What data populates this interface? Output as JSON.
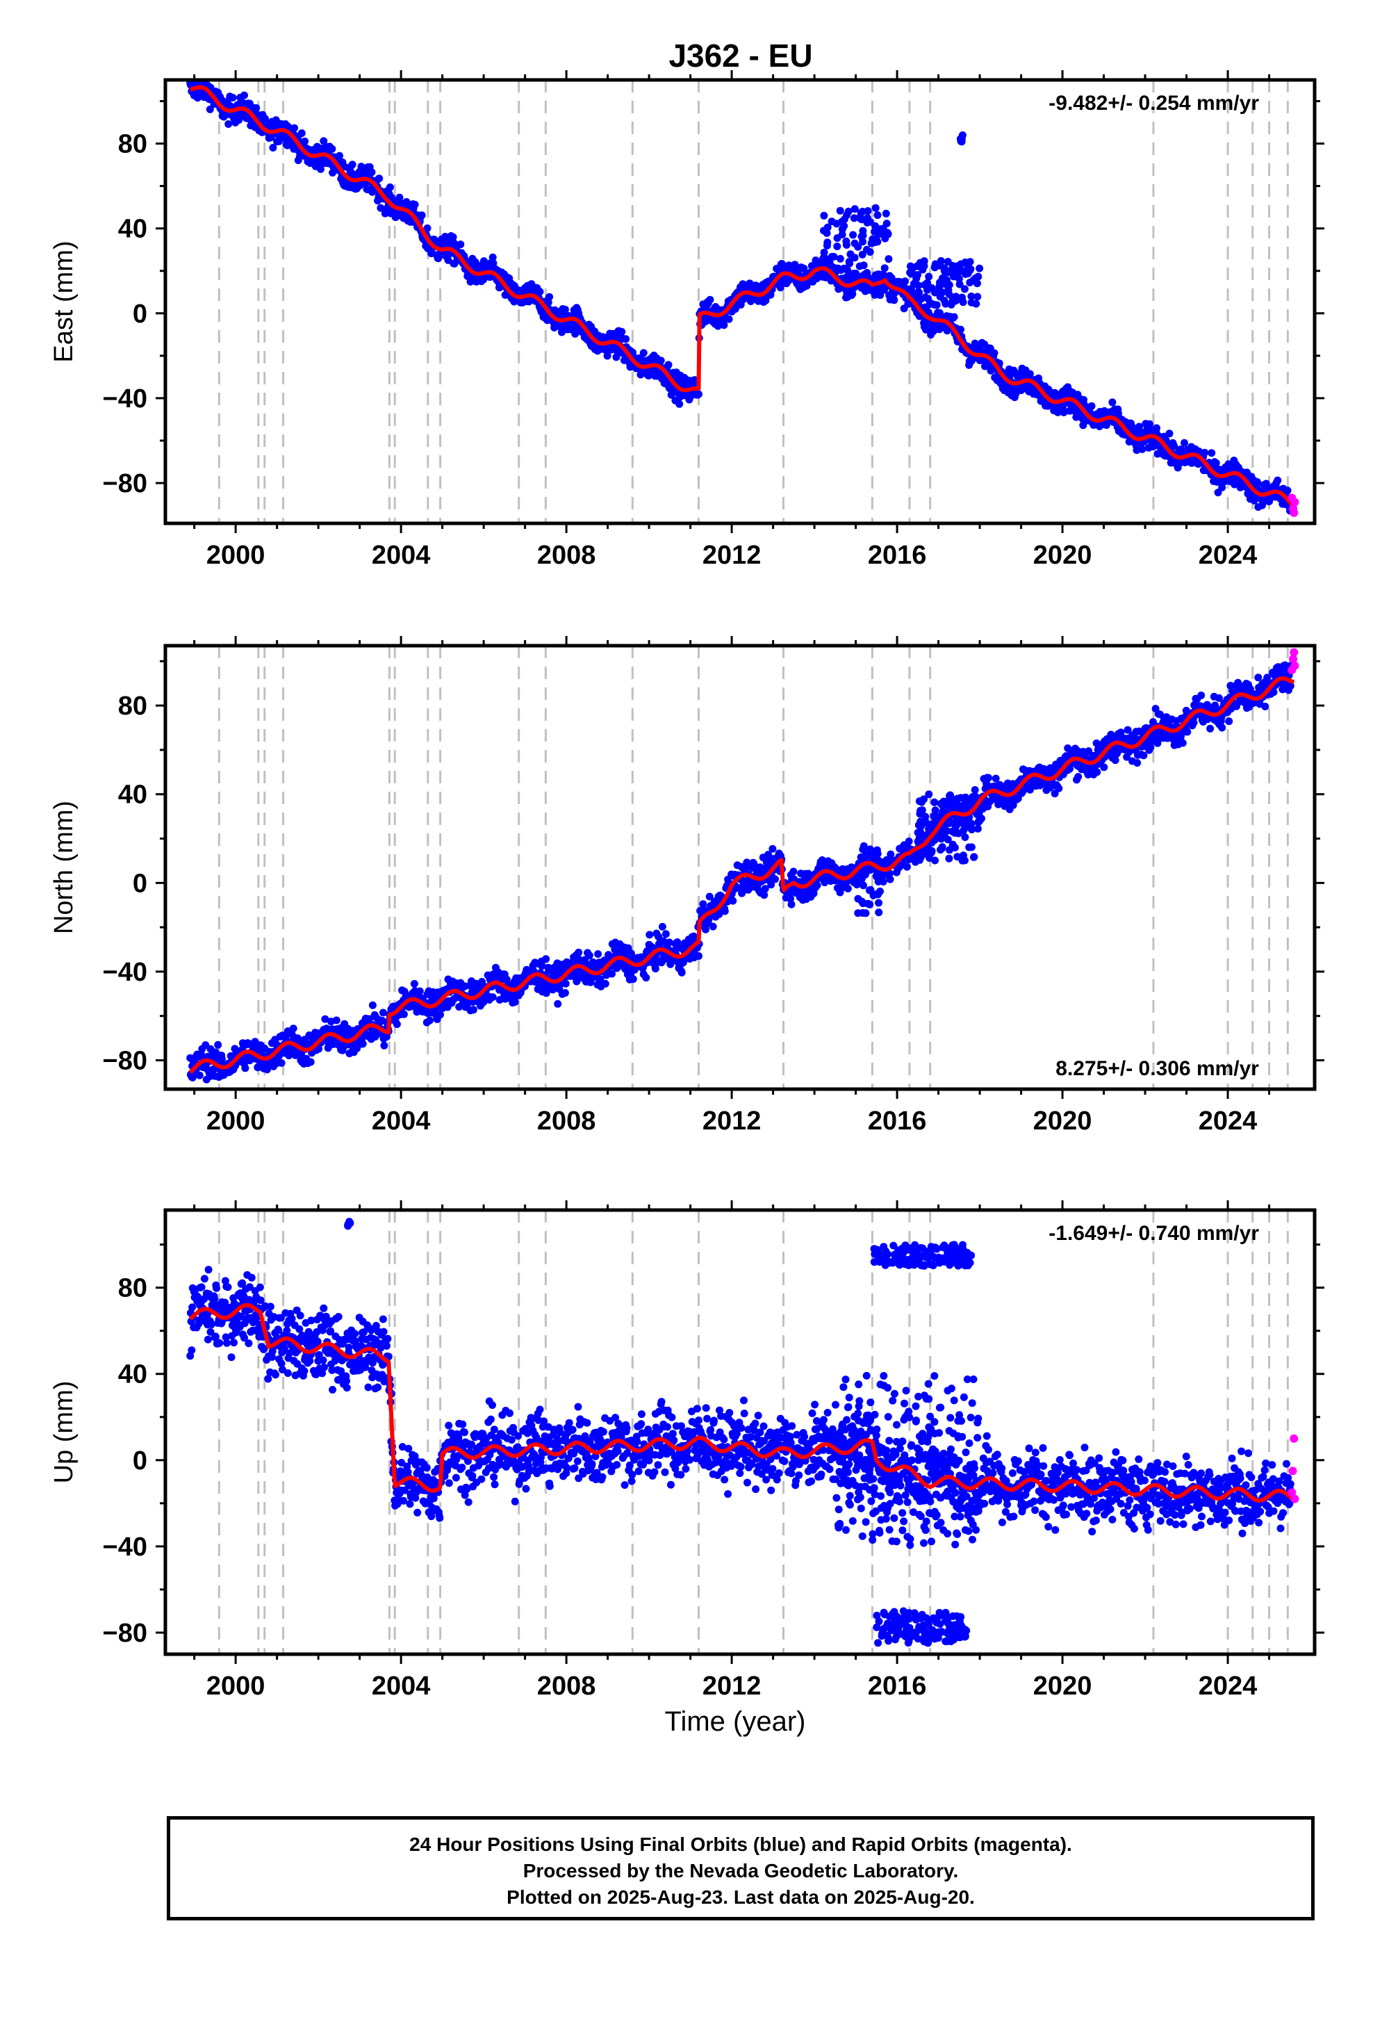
{
  "chart_data": {
    "title": "J362 - EU",
    "xlabel": "Time (year)",
    "xlim": [
      1998.3,
      2026.1
    ],
    "xticks": [
      2000,
      2004,
      2008,
      2012,
      2016,
      2020,
      2024
    ],
    "xtick_labels": [
      "2000",
      "2004",
      "2008",
      "2012",
      "2016",
      "2020",
      "2024"
    ],
    "colors": {
      "final": "#0000ff",
      "rapid": "#ff00ff",
      "model": "#ff0000",
      "event_lines": "#c0c0c0"
    },
    "event_lines": [
      1999.6,
      2000.55,
      2000.7,
      2001.15,
      2003.72,
      2003.85,
      2004.65,
      2004.95,
      2006.85,
      2007.5,
      2009.6,
      2011.2,
      2013.25,
      2015.4,
      2016.3,
      2016.8,
      2022.2,
      2024.0,
      2024.6,
      2025.0,
      2025.45
    ],
    "panels": [
      {
        "type": "scatter",
        "ylabel": "East (mm)",
        "ylim": [
          -99,
          110
        ],
        "yticks": [
          -80,
          -40,
          0,
          40,
          80
        ],
        "ytick_labels": [
          "−80",
          "−40",
          "0",
          "40",
          "80"
        ],
        "rate": "-9.482+/- 0.254 mm/yr",
        "rate_position": "top-right",
        "model_knots": [
          [
            1998.9,
            107
          ],
          [
            2001.0,
            86
          ],
          [
            2003.7,
            55
          ],
          [
            2005.0,
            30
          ],
          [
            2011.2,
            -38
          ],
          [
            2011.22,
            -3
          ],
          [
            2013.2,
            16
          ],
          [
            2014.0,
            20
          ],
          [
            2015.4,
            12
          ],
          [
            2015.7,
            18
          ],
          [
            2016.3,
            5
          ],
          [
            2016.8,
            0
          ],
          [
            2017.9,
            -18
          ],
          [
            2018.5,
            -28
          ],
          [
            2025.6,
            -90
          ]
        ],
        "scatter_noise": 3.0,
        "spikes": [
          [
            2014.2,
            2015.8,
            15,
            50
          ],
          [
            2016.3,
            2018.0,
            4,
            25
          ],
          [
            2017.5,
            2017.6,
            80,
            85
          ]
        ],
        "rapid": [
          [
            2025.55,
            -87
          ],
          [
            2025.58,
            -92
          ],
          [
            2025.6,
            -94
          ],
          [
            2025.62,
            -89
          ]
        ]
      },
      {
        "type": "scatter",
        "ylabel": "North (mm)",
        "ylim": [
          -93,
          107
        ],
        "yticks": [
          -80,
          -40,
          0,
          40,
          80
        ],
        "ytick_labels": [
          "−80",
          "−40",
          "0",
          "40",
          "80"
        ],
        "rate": "8.275+/- 0.306 mm/yr",
        "rate_position": "bottom-right",
        "model_knots": [
          [
            1998.9,
            -84
          ],
          [
            2003.7,
            -65
          ],
          [
            2003.72,
            -57
          ],
          [
            2011.2,
            -29
          ],
          [
            2011.22,
            -20
          ],
          [
            2012.0,
            -1
          ],
          [
            2013.2,
            8
          ],
          [
            2013.25,
            -6
          ],
          [
            2013.5,
            0
          ],
          [
            2015.4,
            7
          ],
          [
            2016.3,
            11
          ],
          [
            2016.8,
            23
          ],
          [
            2018.0,
            37
          ],
          [
            2025.6,
            92
          ]
        ],
        "scatter_noise": 3.5,
        "spikes": [
          [
            2015.0,
            2015.6,
            -15,
            15
          ],
          [
            2016.5,
            2018.0,
            10,
            40
          ]
        ],
        "rapid": [
          [
            2025.55,
            96
          ],
          [
            2025.58,
            101
          ],
          [
            2025.6,
            104
          ],
          [
            2025.62,
            98
          ]
        ]
      },
      {
        "type": "scatter",
        "ylabel": "Up (mm)",
        "ylim": [
          -90,
          116
        ],
        "yticks": [
          -80,
          -40,
          0,
          40,
          80
        ],
        "ytick_labels": [
          "−80",
          "−40",
          "0",
          "40",
          "80"
        ],
        "rate": "-1.649+/- 0.740 mm/yr",
        "rate_position": "top-right",
        "model_knots": [
          [
            1998.9,
            67
          ],
          [
            2000.6,
            70
          ],
          [
            2000.8,
            55
          ],
          [
            2003.7,
            48
          ],
          [
            2003.85,
            -10
          ],
          [
            2004.95,
            -12
          ],
          [
            2005.0,
            3
          ],
          [
            2011.2,
            8
          ],
          [
            2013.25,
            3
          ],
          [
            2015.4,
            7
          ],
          [
            2015.5,
            0
          ],
          [
            2016.8,
            -10
          ],
          [
            2020.0,
            -12
          ],
          [
            2025.6,
            -17
          ]
        ],
        "scatter_noise": 8.0,
        "spikes": [
          [
            2014.5,
            2018.0,
            -40,
            40
          ],
          [
            2002.7,
            2002.8,
            108,
            112
          ],
          [
            2015.4,
            2017.8,
            90,
            100
          ],
          [
            2015.5,
            2017.7,
            -85,
            -70
          ]
        ],
        "rapid": [
          [
            2025.55,
            -15
          ],
          [
            2025.57,
            -5
          ],
          [
            2025.6,
            10
          ],
          [
            2025.62,
            -18
          ]
        ]
      }
    ]
  },
  "footer": {
    "line1": "24 Hour Positions Using Final Orbits (blue) and Rapid Orbits (magenta).",
    "line2": "Processed by the Nevada Geodetic Laboratory.",
    "line3": "Plotted on 2025-Aug-23. Last data on 2025-Aug-20."
  }
}
